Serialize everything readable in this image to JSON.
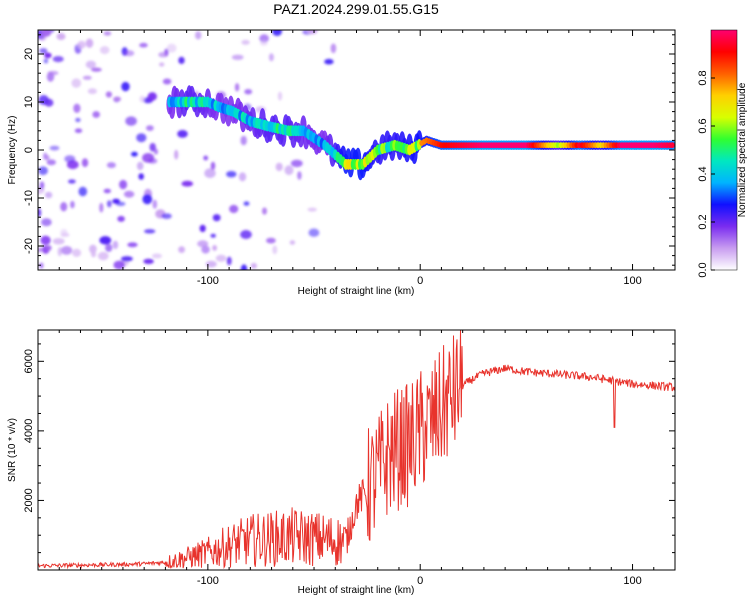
{
  "title": "PAZ1.2024.299.01.55.G15",
  "colors": {
    "snr_line": "#e8332c",
    "axis": "#000000",
    "colormap": [
      "#ffffff",
      "#c89cf0",
      "#7a2cf0",
      "#1010ff",
      "#00b4ff",
      "#00e8c0",
      "#30ff30",
      "#d8ff00",
      "#ffd000",
      "#ff6000",
      "#ff0000",
      "#ff0070"
    ]
  },
  "chart_data": [
    {
      "type": "heatmap",
      "xlabel": "Height of straight line (km)",
      "ylabel": "Frequency (Hz)",
      "xlim": [
        -180,
        120
      ],
      "ylim": [
        -25,
        25
      ],
      "x_ticks": [
        -100,
        0,
        100
      ],
      "y_ticks": [
        -20,
        -10,
        0,
        10,
        20
      ],
      "colorbar": {
        "label": "Normalized spectral amplitude",
        "range": [
          0,
          1
        ],
        "ticks": [
          "0.0",
          "0.2",
          "0.4",
          "0.6",
          "0.8"
        ]
      },
      "ridge": [
        {
          "x": -118,
          "y": 10,
          "a": 0.5
        },
        {
          "x": -110,
          "y": 10,
          "a": 0.6
        },
        {
          "x": -100,
          "y": 10,
          "a": 0.55
        },
        {
          "x": -95,
          "y": 9,
          "a": 0.5
        },
        {
          "x": -88,
          "y": 8,
          "a": 0.5
        },
        {
          "x": -80,
          "y": 6,
          "a": 0.55
        },
        {
          "x": -72,
          "y": 5,
          "a": 0.6
        },
        {
          "x": -62,
          "y": 4,
          "a": 0.6
        },
        {
          "x": -55,
          "y": 4,
          "a": 0.55
        },
        {
          "x": -45,
          "y": 1,
          "a": 0.5
        },
        {
          "x": -35,
          "y": -3,
          "a": 0.8
        },
        {
          "x": -27,
          "y": -3,
          "a": 0.8
        },
        {
          "x": -20,
          "y": 0,
          "a": 0.7
        },
        {
          "x": -12,
          "y": 1,
          "a": 0.7
        },
        {
          "x": -5,
          "y": 0,
          "a": 0.75
        },
        {
          "x": 3,
          "y": 2,
          "a": 0.8
        },
        {
          "x": 10,
          "y": 1,
          "a": 0.9
        },
        {
          "x": 30,
          "y": 1,
          "a": 1.0
        },
        {
          "x": 50,
          "y": 1,
          "a": 1.0
        },
        {
          "x": 65,
          "y": 1,
          "a": 0.6
        },
        {
          "x": 75,
          "y": 1,
          "a": 0.95
        },
        {
          "x": 85,
          "y": 1,
          "a": 0.7
        },
        {
          "x": 95,
          "y": 1,
          "a": 1.0
        },
        {
          "x": 110,
          "y": 1,
          "a": 1.0
        },
        {
          "x": 120,
          "y": 1,
          "a": 0.95
        }
      ]
    },
    {
      "type": "line",
      "xlabel": "Height of straight line (km)",
      "ylabel": "SNR (10 * v/v)",
      "xlim": [
        -180,
        120
      ],
      "ylim": [
        0,
        6900
      ],
      "x_ticks": [
        -100,
        0,
        100
      ],
      "y_ticks": [
        2000,
        4000,
        6000
      ],
      "series": [
        {
          "color": "#e8332c",
          "x": [
            -180,
            -160,
            -140,
            -130,
            -120,
            -110,
            -100,
            -90,
            -80,
            -70,
            -60,
            -50,
            -40,
            -35,
            -30,
            -25,
            -20,
            -15,
            -10,
            -5,
            0,
            5,
            10,
            15,
            20,
            25,
            30,
            40,
            50,
            60,
            70,
            80,
            90,
            100,
            110,
            120
          ],
          "y": [
            120,
            140,
            160,
            180,
            220,
            350,
            500,
            700,
            850,
            900,
            950,
            900,
            850,
            800,
            1900,
            2300,
            2700,
            3300,
            3500,
            3600,
            4000,
            4200,
            4600,
            5000,
            5300,
            5500,
            5650,
            5800,
            5700,
            5650,
            5600,
            5550,
            5450,
            5350,
            5300,
            5250
          ]
        }
      ]
    }
  ]
}
